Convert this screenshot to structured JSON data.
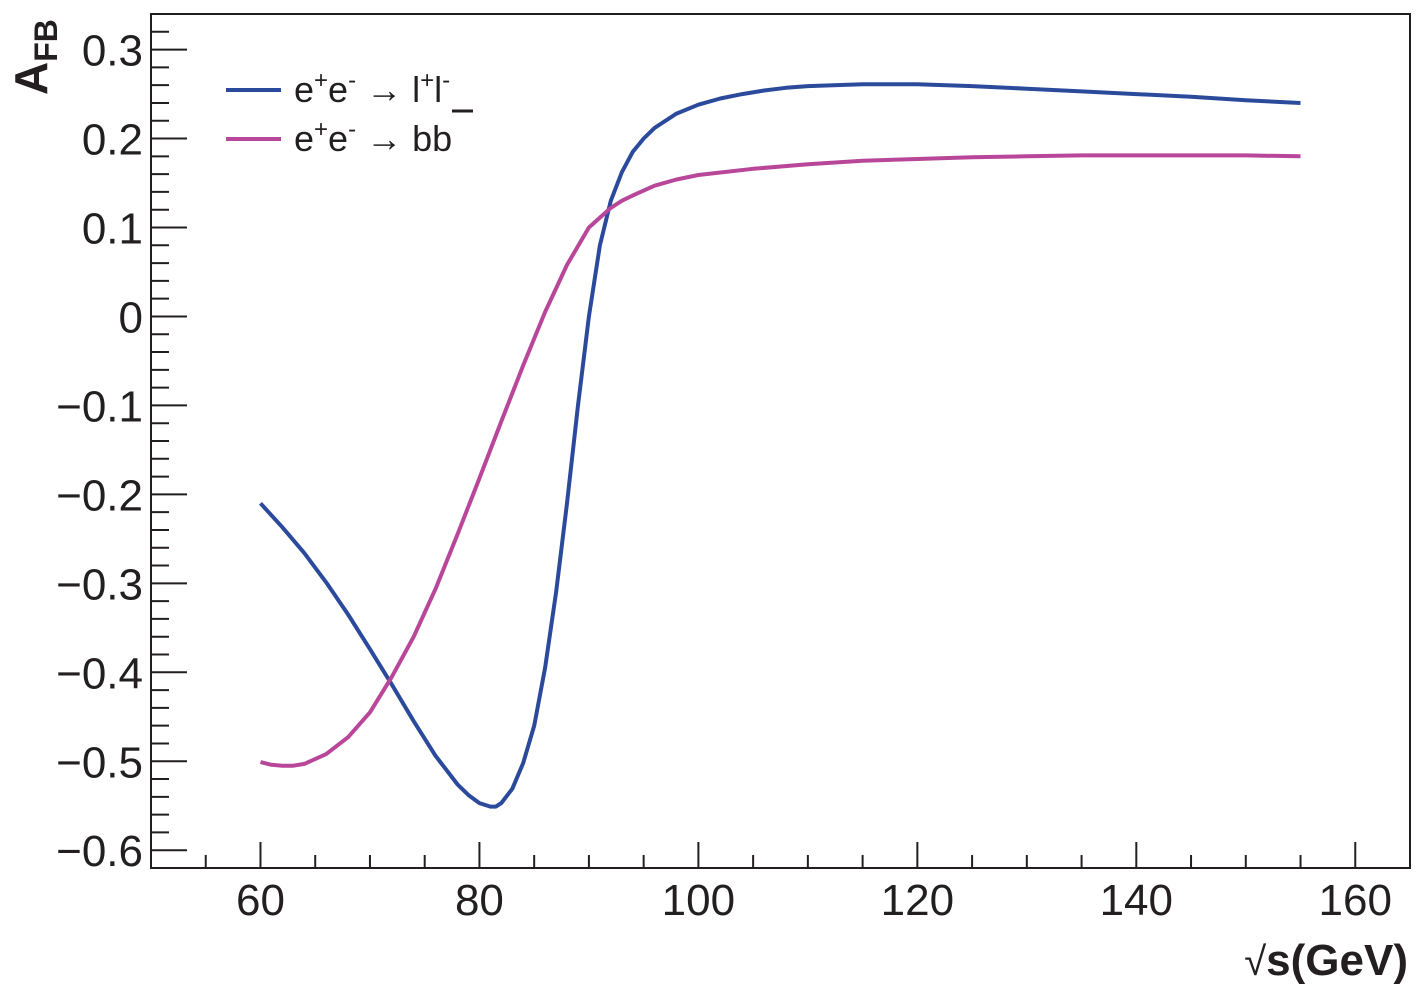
{
  "chart_data": {
    "type": "line",
    "xlabel": "√s(GeV)",
    "ylabel": "A_FB",
    "xlim": [
      50,
      165
    ],
    "ylim": [
      -0.62,
      0.34
    ],
    "xticks": [
      60,
      80,
      100,
      120,
      140,
      160
    ],
    "yticks": [
      -0.6,
      -0.5,
      -0.4,
      -0.3,
      -0.2,
      -0.1,
      0,
      0.1,
      0.2,
      0.3
    ],
    "ytick_labels": [
      "−0.6",
      "−0.5",
      "−0.4",
      "−0.3",
      "−0.2",
      "−0.1",
      "0",
      "0.1",
      "0.2",
      "0.3"
    ],
    "grid": false,
    "legend_position": "top-left",
    "series": [
      {
        "name": "e⁺e⁻ → l⁺l⁻",
        "color": "#2b4a9c",
        "x": [
          60,
          62,
          64,
          66,
          68,
          70,
          72,
          74,
          76,
          78,
          79,
          80,
          81,
          81.5,
          82,
          83,
          84,
          85,
          86,
          87,
          88,
          89,
          90,
          91,
          92,
          93,
          94,
          95,
          96,
          98,
          100,
          102,
          104,
          106,
          108,
          110,
          115,
          120,
          125,
          130,
          135,
          140,
          145,
          150,
          155
        ],
        "y": [
          -0.21,
          -0.237,
          -0.266,
          -0.299,
          -0.335,
          -0.374,
          -0.414,
          -0.455,
          -0.494,
          -0.526,
          -0.538,
          -0.547,
          -0.551,
          -0.551,
          -0.547,
          -0.531,
          -0.502,
          -0.46,
          -0.395,
          -0.31,
          -0.21,
          -0.1,
          0.0,
          0.08,
          0.13,
          0.162,
          0.185,
          0.2,
          0.212,
          0.228,
          0.238,
          0.245,
          0.25,
          0.254,
          0.257,
          0.259,
          0.261,
          0.261,
          0.259,
          0.256,
          0.253,
          0.25,
          0.247,
          0.243,
          0.24
        ]
      },
      {
        "name": "e⁺e⁻ → bb̄",
        "color": "#b84799",
        "x": [
          60,
          61,
          62,
          63,
          64,
          66,
          68,
          70,
          72,
          74,
          76,
          78,
          80,
          82,
          84,
          86,
          88,
          90,
          92,
          93,
          94,
          96,
          98,
          100,
          105,
          110,
          115,
          120,
          125,
          130,
          135,
          140,
          145,
          150,
          155
        ],
        "y": [
          -0.501,
          -0.504,
          -0.505,
          -0.505,
          -0.503,
          -0.492,
          -0.473,
          -0.445,
          -0.405,
          -0.36,
          -0.306,
          -0.245,
          -0.182,
          -0.118,
          -0.055,
          0.005,
          0.058,
          0.1,
          0.122,
          0.13,
          0.136,
          0.147,
          0.154,
          0.159,
          0.166,
          0.171,
          0.175,
          0.177,
          0.179,
          0.18,
          0.181,
          0.181,
          0.181,
          0.181,
          0.18
        ]
      }
    ],
    "legend": [
      {
        "base": "e",
        "sup1": "+",
        "mid": "e",
        "sup2": "-",
        "arrow": " → ",
        "tail": "l",
        "tail_sup1": "+",
        "tail2": "l",
        "tail_sup2": "-"
      },
      {
        "base": "e",
        "sup1": "+",
        "mid": "e",
        "sup2": "-",
        "arrow": " → ",
        "tail": "b",
        "tail2": "b"
      }
    ],
    "ylabel_main": "A",
    "ylabel_sub": "FB",
    "xlabel_sqrt": "√",
    "xlabel_main": "s(GeV)"
  }
}
